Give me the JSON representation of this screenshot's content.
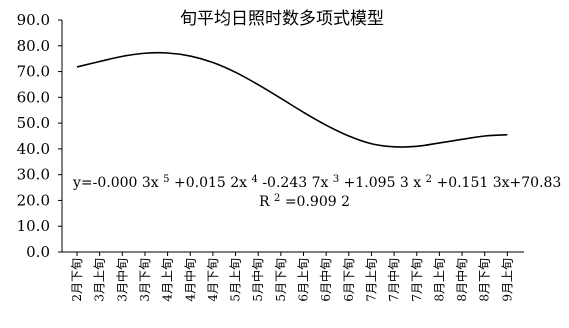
{
  "chart_data": {
    "type": "line",
    "title": "旬平均日照时数多项式模型",
    "xlabel": "",
    "ylabel": "",
    "ylim": [
      0,
      90
    ],
    "yticks": [
      "0.0",
      "10.0",
      "20.0",
      "30.0",
      "40.0",
      "50.0",
      "60.0",
      "70.0",
      "80.0",
      "90.0"
    ],
    "grid": false,
    "legend": "none",
    "categories": [
      "2月下旬",
      "3月上旬",
      "3月中旬",
      "3月下旬",
      "4月上旬",
      "4月中旬",
      "4月下旬",
      "5月上旬",
      "5月中旬",
      "5月下旬",
      "6月上旬",
      "6月中旬",
      "6月下旬",
      "7月上旬",
      "7月中旬",
      "7月下旬",
      "8月上旬",
      "8月中旬",
      "8月下旬",
      "9月上旬"
    ],
    "series": [
      {
        "values": [
          71.8,
          73.9,
          75.9,
          77.1,
          77.2,
          76.0,
          73.5,
          69.7,
          64.9,
          59.6,
          54.2,
          49.2,
          45.0,
          42.0,
          40.8,
          41.0,
          42.3,
          43.7,
          45.0,
          45.5
        ],
        "color": "#000000"
      }
    ],
    "annotations": {
      "equation": {
        "prefix": "y=-0.000 3x",
        "exp5": "5",
        "term4": "+0.015 2x",
        "exp4": "4",
        "term3": "-0.243 7x",
        "exp3": "3",
        "term2": "+1.095 3 x",
        "exp2": "2",
        "tail": "+0.151 3x+70.83"
      },
      "r_squared": {
        "label": "R",
        "exp": "2",
        "value": "=0.909 2"
      }
    }
  }
}
